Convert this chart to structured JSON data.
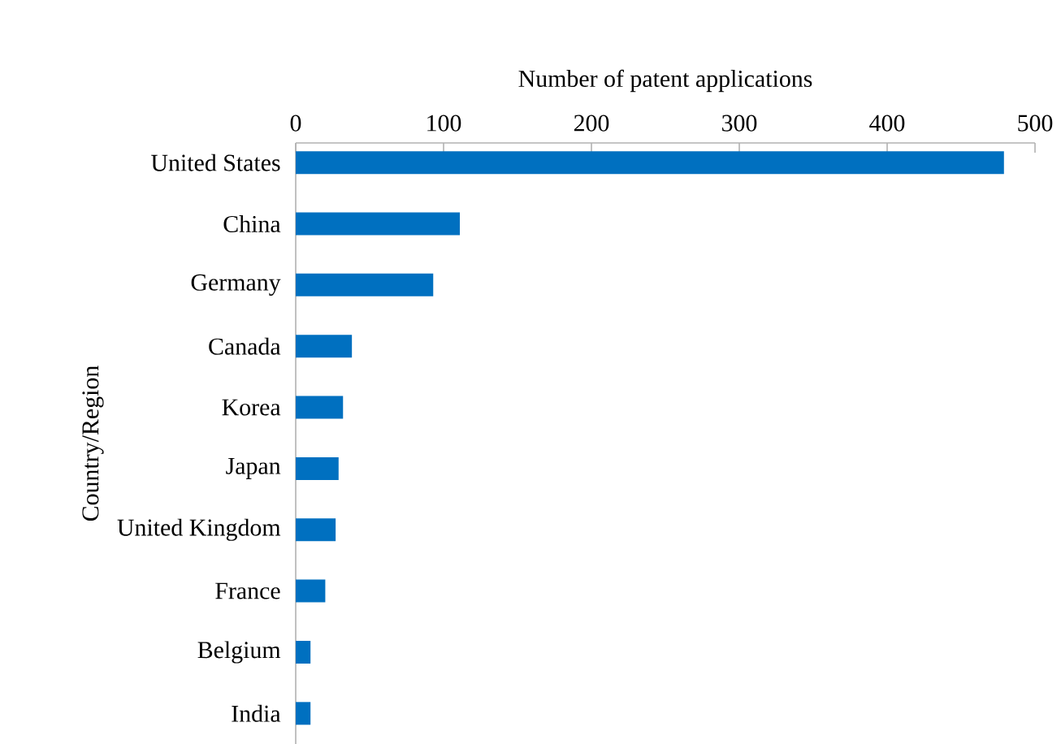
{
  "chart_data": {
    "type": "bar",
    "orientation": "horizontal",
    "xlabel": "Number of patent applications",
    "ylabel": "Country/Region",
    "categories": [
      "United States",
      "China",
      "Germany",
      "Canada",
      "Korea",
      "Japan",
      "United Kingdom",
      "France",
      "Belgium",
      "India"
    ],
    "values": [
      479,
      111,
      93,
      38,
      32,
      29,
      27,
      20,
      10,
      10
    ],
    "color": "#0070c0",
    "xlim": [
      0,
      500
    ],
    "xticks": [
      0,
      100,
      200,
      300,
      400,
      500
    ]
  }
}
